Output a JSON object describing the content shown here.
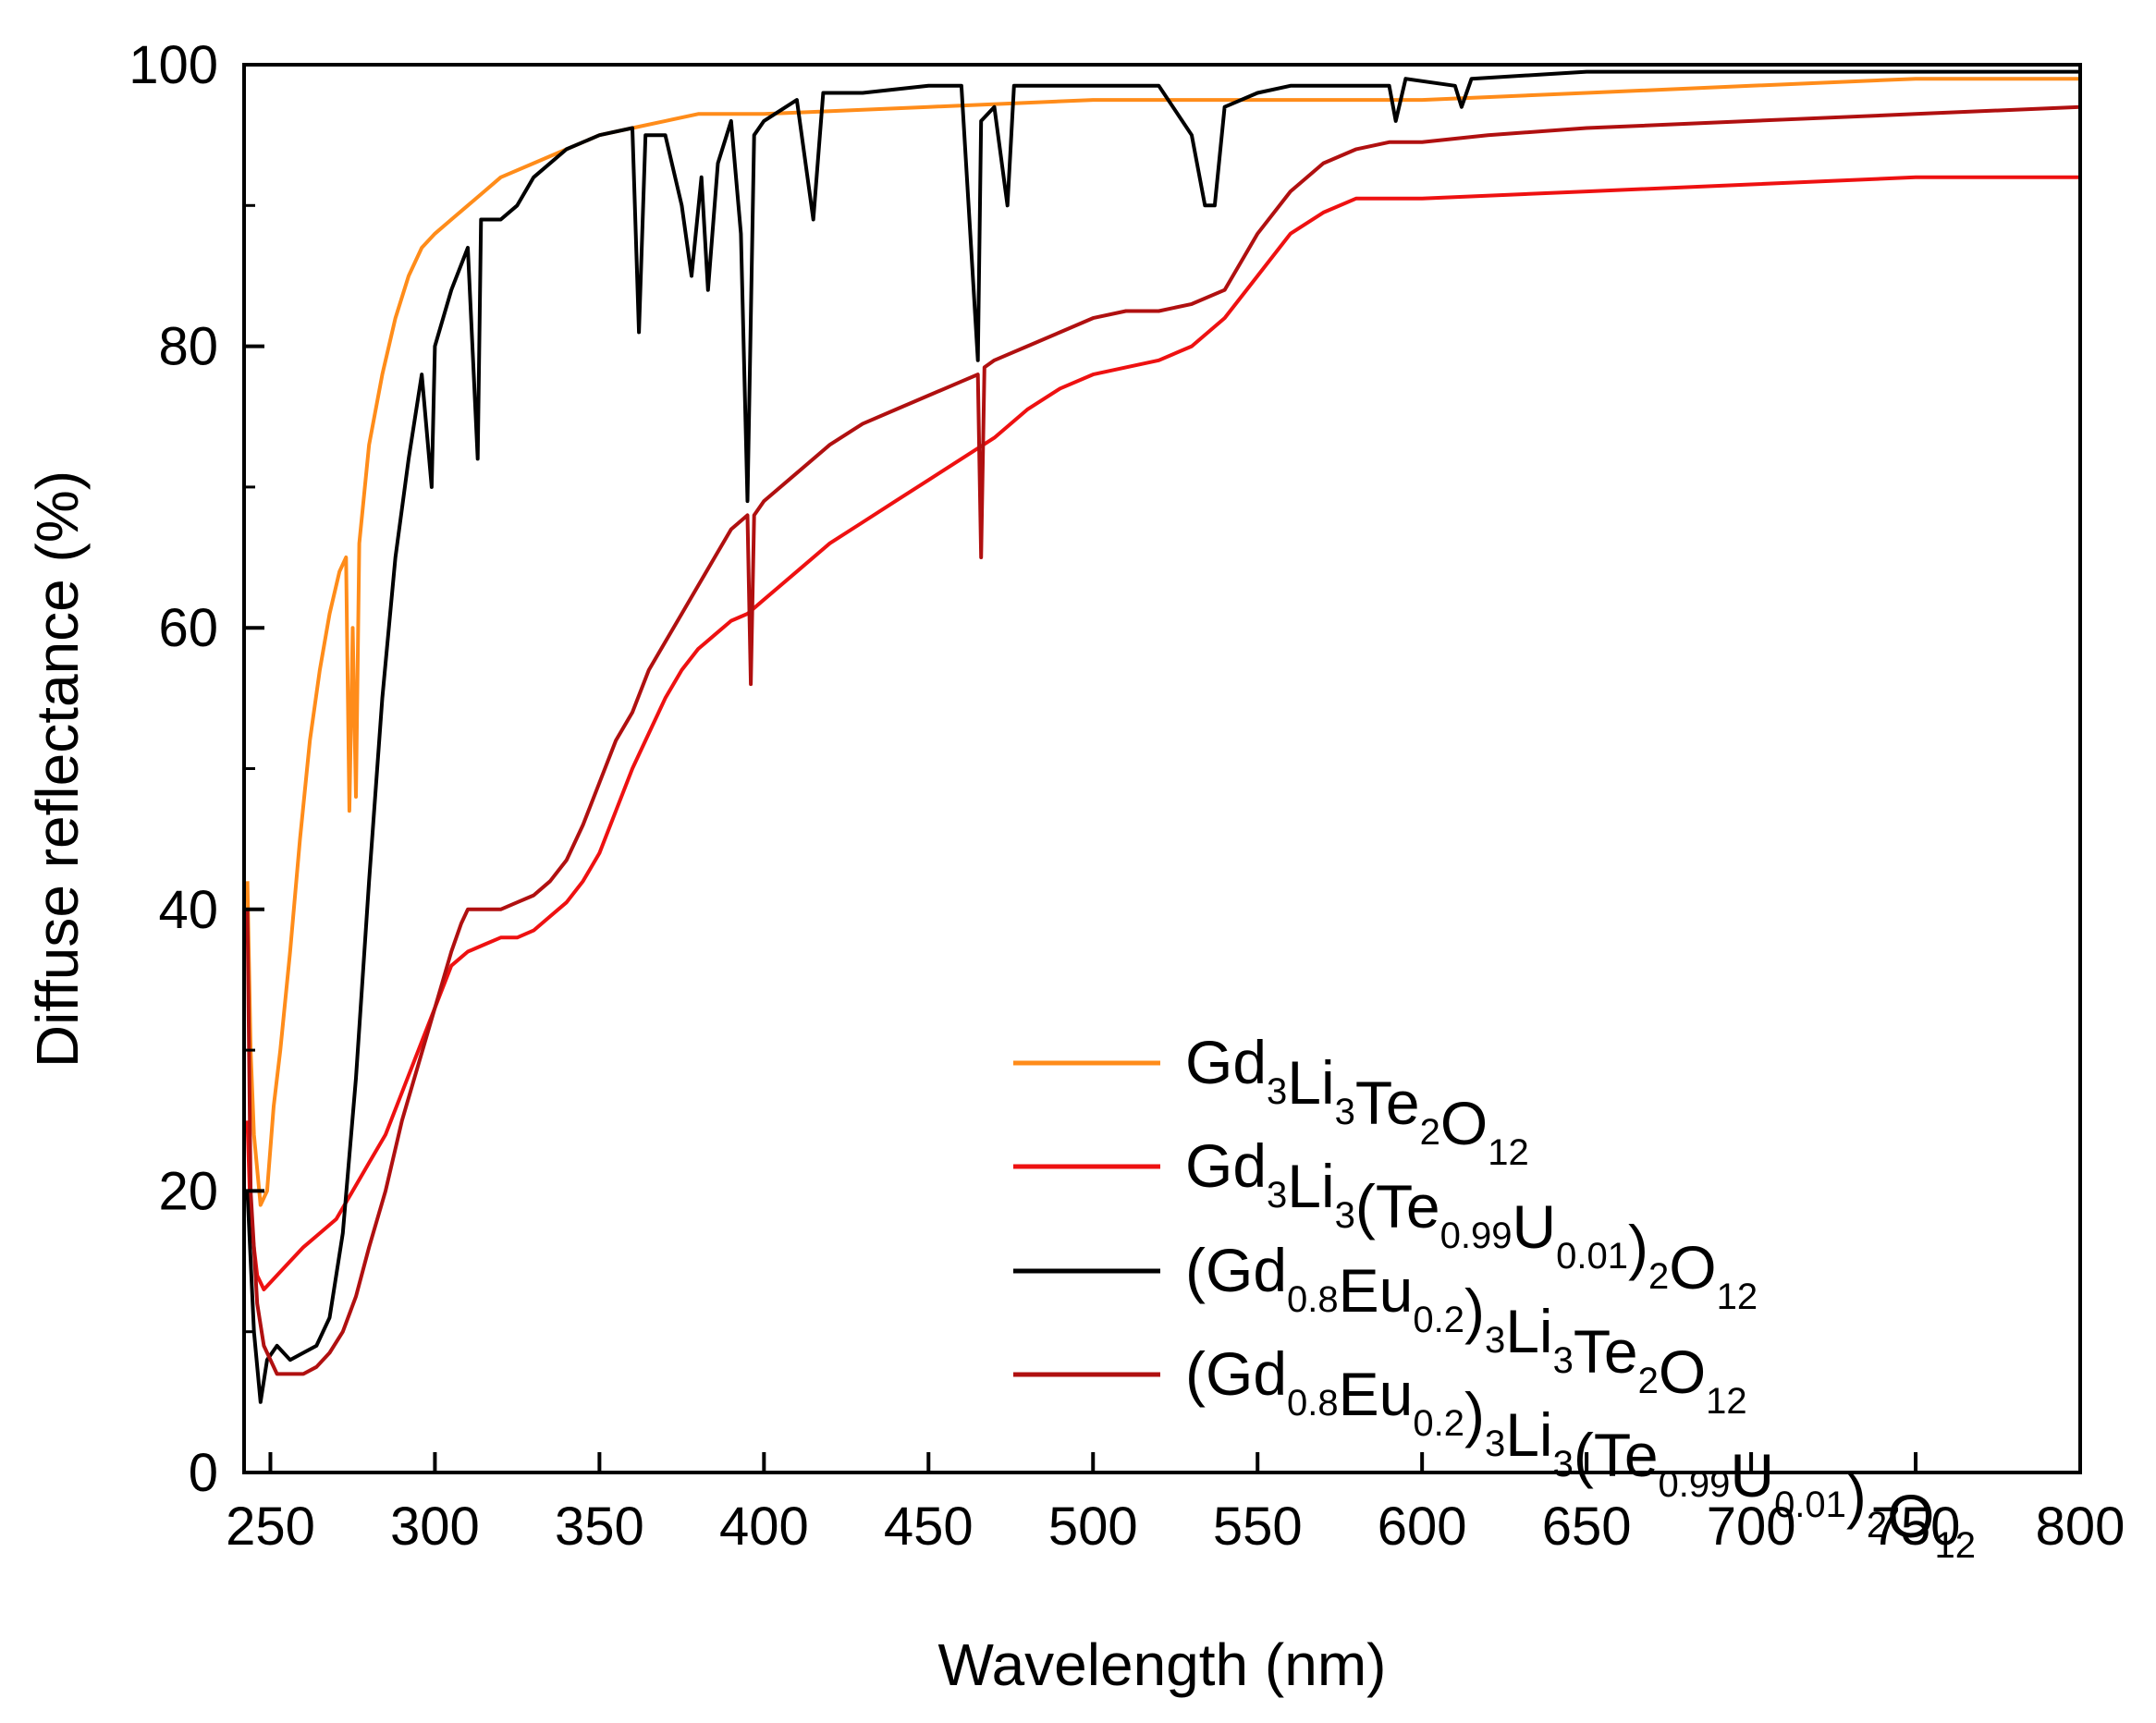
{
  "chart_data": {
    "type": "line",
    "xlabel": "Wavelength (nm)",
    "ylabel": "Diffuse reflectance (%)",
    "xlim": [
      242,
      800
    ],
    "ylim": [
      0,
      100
    ],
    "x_ticks": [
      250,
      300,
      350,
      400,
      450,
      500,
      550,
      600,
      650,
      700,
      750,
      800
    ],
    "y_ticks": [
      0,
      20,
      40,
      60,
      80,
      100
    ],
    "x_minor_step": 25,
    "y_minor_step": 10,
    "grid": false,
    "legend_position": "bottom-right",
    "series": [
      {
        "name": "Gd3Li3Te2O12",
        "legend_parts": [
          {
            "t": "Gd",
            "sub": false
          },
          {
            "t": "3",
            "sub": true
          },
          {
            "t": "Li",
            "sub": false
          },
          {
            "t": "3",
            "sub": true
          },
          {
            "t": "Te",
            "sub": false
          },
          {
            "t": "2",
            "sub": true
          },
          {
            "t": "O",
            "sub": false
          },
          {
            "t": "12",
            "sub": true
          }
        ],
        "color": "#ff8c1a",
        "points": [
          [
            243,
            42
          ],
          [
            244,
            30
          ],
          [
            245,
            24
          ],
          [
            247,
            19
          ],
          [
            249,
            20
          ],
          [
            251,
            26
          ],
          [
            253,
            30
          ],
          [
            256,
            37
          ],
          [
            259,
            45
          ],
          [
            262,
            52
          ],
          [
            265,
            57
          ],
          [
            268,
            61
          ],
          [
            271,
            64
          ],
          [
            273,
            65
          ],
          [
            274,
            47
          ],
          [
            275,
            60
          ],
          [
            276,
            48
          ],
          [
            277,
            66
          ],
          [
            280,
            73
          ],
          [
            284,
            78
          ],
          [
            288,
            82
          ],
          [
            292,
            85
          ],
          [
            296,
            87
          ],
          [
            300,
            88
          ],
          [
            305,
            89
          ],
          [
            310,
            90
          ],
          [
            315,
            91
          ],
          [
            320,
            92
          ],
          [
            330,
            93
          ],
          [
            340,
            94
          ],
          [
            350,
            95
          ],
          [
            360,
            95.5
          ],
          [
            370,
            96
          ],
          [
            380,
            96.5
          ],
          [
            400,
            96.5
          ],
          [
            450,
            97
          ],
          [
            500,
            97.5
          ],
          [
            550,
            97.5
          ],
          [
            600,
            97.5
          ],
          [
            650,
            98
          ],
          [
            700,
            98.5
          ],
          [
            750,
            99
          ],
          [
            800,
            99
          ]
        ]
      },
      {
        "name": "Gd3Li3(Te0.99U0.01)2O12",
        "legend_parts": [
          {
            "t": "Gd",
            "sub": false
          },
          {
            "t": "3",
            "sub": true
          },
          {
            "t": "Li",
            "sub": false
          },
          {
            "t": "3",
            "sub": true
          },
          {
            "t": "(Te",
            "sub": false
          },
          {
            "t": "0.99",
            "sub": true
          },
          {
            "t": "U",
            "sub": false
          },
          {
            "t": "0.01",
            "sub": true
          },
          {
            "t": ")",
            "sub": false
          },
          {
            "t": "2",
            "sub": true
          },
          {
            "t": "O",
            "sub": false
          },
          {
            "t": "12",
            "sub": true
          }
        ],
        "color": "#ee1111",
        "points": [
          [
            243,
            25
          ],
          [
            244,
            18
          ],
          [
            246,
            14
          ],
          [
            248,
            13
          ],
          [
            252,
            14
          ],
          [
            256,
            15
          ],
          [
            260,
            16
          ],
          [
            265,
            17
          ],
          [
            270,
            18
          ],
          [
            275,
            20
          ],
          [
            280,
            22
          ],
          [
            285,
            24
          ],
          [
            290,
            27
          ],
          [
            295,
            30
          ],
          [
            300,
            33
          ],
          [
            305,
            36
          ],
          [
            310,
            37
          ],
          [
            315,
            37.5
          ],
          [
            320,
            38
          ],
          [
            325,
            38
          ],
          [
            330,
            38.5
          ],
          [
            335,
            39.5
          ],
          [
            340,
            40.5
          ],
          [
            345,
            42
          ],
          [
            350,
            44
          ],
          [
            355,
            47
          ],
          [
            360,
            50
          ],
          [
            365,
            52.5
          ],
          [
            370,
            55
          ],
          [
            375,
            57
          ],
          [
            380,
            58.5
          ],
          [
            385,
            59.5
          ],
          [
            390,
            60.5
          ],
          [
            395,
            61
          ],
          [
            400,
            62
          ],
          [
            410,
            64
          ],
          [
            420,
            66
          ],
          [
            430,
            67.5
          ],
          [
            440,
            69
          ],
          [
            450,
            70.5
          ],
          [
            460,
            72
          ],
          [
            470,
            73.5
          ],
          [
            480,
            75.5
          ],
          [
            490,
            77
          ],
          [
            500,
            78
          ],
          [
            510,
            78.5
          ],
          [
            520,
            79
          ],
          [
            530,
            80
          ],
          [
            540,
            82
          ],
          [
            550,
            85
          ],
          [
            560,
            88
          ],
          [
            570,
            89.5
          ],
          [
            580,
            90.5
          ],
          [
            600,
            90.5
          ],
          [
            650,
            91
          ],
          [
            700,
            91.5
          ],
          [
            750,
            92
          ],
          [
            800,
            92
          ]
        ]
      },
      {
        "name": "(Gd0.8Eu0.2)3Li3Te2O12",
        "legend_parts": [
          {
            "t": "(Gd",
            "sub": false
          },
          {
            "t": "0.8",
            "sub": true
          },
          {
            "t": "Eu",
            "sub": false
          },
          {
            "t": "0.2",
            "sub": true
          },
          {
            "t": ")",
            "sub": false
          },
          {
            "t": "3",
            "sub": true
          },
          {
            "t": "Li",
            "sub": false
          },
          {
            "t": "3",
            "sub": true
          },
          {
            "t": "Te",
            "sub": false
          },
          {
            "t": "2",
            "sub": true
          },
          {
            "t": "O",
            "sub": false
          },
          {
            "t": "12",
            "sub": true
          }
        ],
        "color": "#000000",
        "points": [
          [
            243,
            20
          ],
          [
            245,
            10
          ],
          [
            247,
            5
          ],
          [
            249,
            8
          ],
          [
            252,
            9
          ],
          [
            256,
            8
          ],
          [
            260,
            8.5
          ],
          [
            264,
            9
          ],
          [
            268,
            11
          ],
          [
            272,
            17
          ],
          [
            276,
            28
          ],
          [
            280,
            42
          ],
          [
            284,
            55
          ],
          [
            288,
            65
          ],
          [
            292,
            72
          ],
          [
            296,
            78
          ],
          [
            299,
            70
          ],
          [
            300,
            80
          ],
          [
            305,
            84
          ],
          [
            310,
            87
          ],
          [
            313,
            72
          ],
          [
            314,
            89
          ],
          [
            320,
            89
          ],
          [
            325,
            90
          ],
          [
            330,
            92
          ],
          [
            340,
            94
          ],
          [
            350,
            95
          ],
          [
            360,
            95.5
          ],
          [
            362,
            81
          ],
          [
            364,
            95
          ],
          [
            370,
            95
          ],
          [
            375,
            90
          ],
          [
            378,
            85
          ],
          [
            381,
            92
          ],
          [
            383,
            84
          ],
          [
            386,
            93
          ],
          [
            390,
            96
          ],
          [
            393,
            88
          ],
          [
            395,
            69
          ],
          [
            397,
            95
          ],
          [
            400,
            96
          ],
          [
            410,
            97.5
          ],
          [
            415,
            89
          ],
          [
            418,
            98
          ],
          [
            430,
            98
          ],
          [
            450,
            98.5
          ],
          [
            460,
            98.5
          ],
          [
            465,
            79
          ],
          [
            466,
            96
          ],
          [
            470,
            97
          ],
          [
            474,
            90
          ],
          [
            476,
            98.5
          ],
          [
            500,
            98.5
          ],
          [
            520,
            98.5
          ],
          [
            530,
            95
          ],
          [
            534,
            90
          ],
          [
            537,
            90
          ],
          [
            540,
            97
          ],
          [
            550,
            98
          ],
          [
            560,
            98.5
          ],
          [
            590,
            98.5
          ],
          [
            592,
            96
          ],
          [
            595,
            99
          ],
          [
            610,
            98.5
          ],
          [
            612,
            97
          ],
          [
            615,
            99
          ],
          [
            650,
            99.5
          ],
          [
            700,
            99.5
          ],
          [
            750,
            99.5
          ],
          [
            800,
            99.5
          ]
        ]
      },
      {
        "name": "(Gd0.8Eu0.2)3Li3(Te0.99U0.01)2O12",
        "legend_parts": [
          {
            "t": "(Gd",
            "sub": false
          },
          {
            "t": "0.8",
            "sub": true
          },
          {
            "t": "Eu",
            "sub": false
          },
          {
            "t": "0.2",
            "sub": true
          },
          {
            "t": ")",
            "sub": false
          },
          {
            "t": "3",
            "sub": true
          },
          {
            "t": "Li",
            "sub": false
          },
          {
            "t": "3",
            "sub": true
          },
          {
            "t": "(Te",
            "sub": false
          },
          {
            "t": "0.99",
            "sub": true
          },
          {
            "t": "U",
            "sub": false
          },
          {
            "t": "0.01",
            "sub": true
          },
          {
            "t": ")",
            "sub": false
          },
          {
            "t": "2",
            "sub": true
          },
          {
            "t": "O",
            "sub": false
          },
          {
            "t": "12",
            "sub": true
          }
        ],
        "color": "#b01010",
        "points": [
          [
            243,
            40
          ],
          [
            244,
            20
          ],
          [
            246,
            12
          ],
          [
            248,
            9
          ],
          [
            252,
            7
          ],
          [
            256,
            7
          ],
          [
            260,
            7
          ],
          [
            264,
            7.5
          ],
          [
            268,
            8.5
          ],
          [
            272,
            10
          ],
          [
            276,
            12.5
          ],
          [
            280,
            16
          ],
          [
            285,
            20
          ],
          [
            290,
            25
          ],
          [
            295,
            29
          ],
          [
            300,
            33
          ],
          [
            305,
            37
          ],
          [
            308,
            39
          ],
          [
            310,
            40
          ],
          [
            315,
            40
          ],
          [
            320,
            40
          ],
          [
            325,
            40.5
          ],
          [
            330,
            41
          ],
          [
            335,
            42
          ],
          [
            340,
            43.5
          ],
          [
            345,
            46
          ],
          [
            350,
            49
          ],
          [
            355,
            52
          ],
          [
            360,
            54
          ],
          [
            365,
            57
          ],
          [
            370,
            59
          ],
          [
            375,
            61
          ],
          [
            380,
            63
          ],
          [
            385,
            65
          ],
          [
            390,
            67
          ],
          [
            395,
            68
          ],
          [
            396,
            56
          ],
          [
            397,
            68
          ],
          [
            400,
            69
          ],
          [
            410,
            71
          ],
          [
            420,
            73
          ],
          [
            430,
            74.5
          ],
          [
            440,
            75.5
          ],
          [
            450,
            76.5
          ],
          [
            460,
            77.5
          ],
          [
            465,
            78
          ],
          [
            466,
            65
          ],
          [
            467,
            78.5
          ],
          [
            470,
            79
          ],
          [
            480,
            80
          ],
          [
            490,
            81
          ],
          [
            500,
            82
          ],
          [
            510,
            82.5
          ],
          [
            520,
            82.5
          ],
          [
            530,
            83
          ],
          [
            540,
            84
          ],
          [
            550,
            88
          ],
          [
            560,
            91
          ],
          [
            570,
            93
          ],
          [
            580,
            94
          ],
          [
            590,
            94.5
          ],
          [
            600,
            94.5
          ],
          [
            620,
            95
          ],
          [
            650,
            95.5
          ],
          [
            700,
            96
          ],
          [
            750,
            96.5
          ],
          [
            800,
            97
          ]
        ]
      }
    ]
  }
}
